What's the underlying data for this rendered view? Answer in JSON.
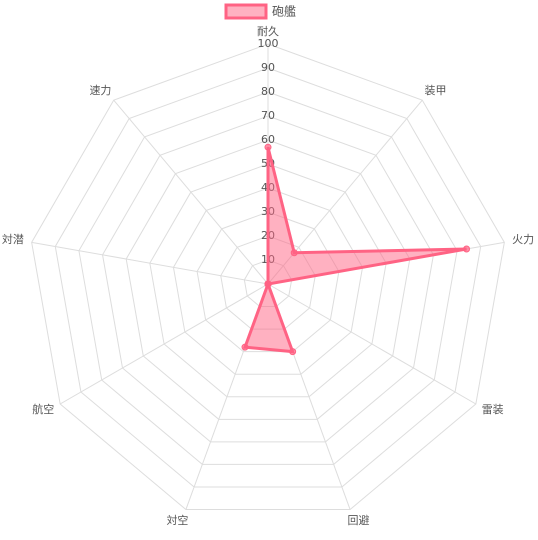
{
  "chart_data": {
    "type": "radar",
    "categories": [
      "耐久",
      "装甲",
      "火力",
      "雷装",
      "回避",
      "対空",
      "航空",
      "対潜",
      "速力"
    ],
    "series": [
      {
        "name": "砲艦",
        "color": "#ff6384",
        "values": [
          57,
          17,
          84,
          0,
          30,
          28,
          0,
          0,
          0
        ]
      }
    ],
    "rlim": [
      0,
      100
    ],
    "rticks": [
      10,
      20,
      30,
      40,
      50,
      60,
      70,
      80,
      90,
      100
    ],
    "grid": true
  }
}
